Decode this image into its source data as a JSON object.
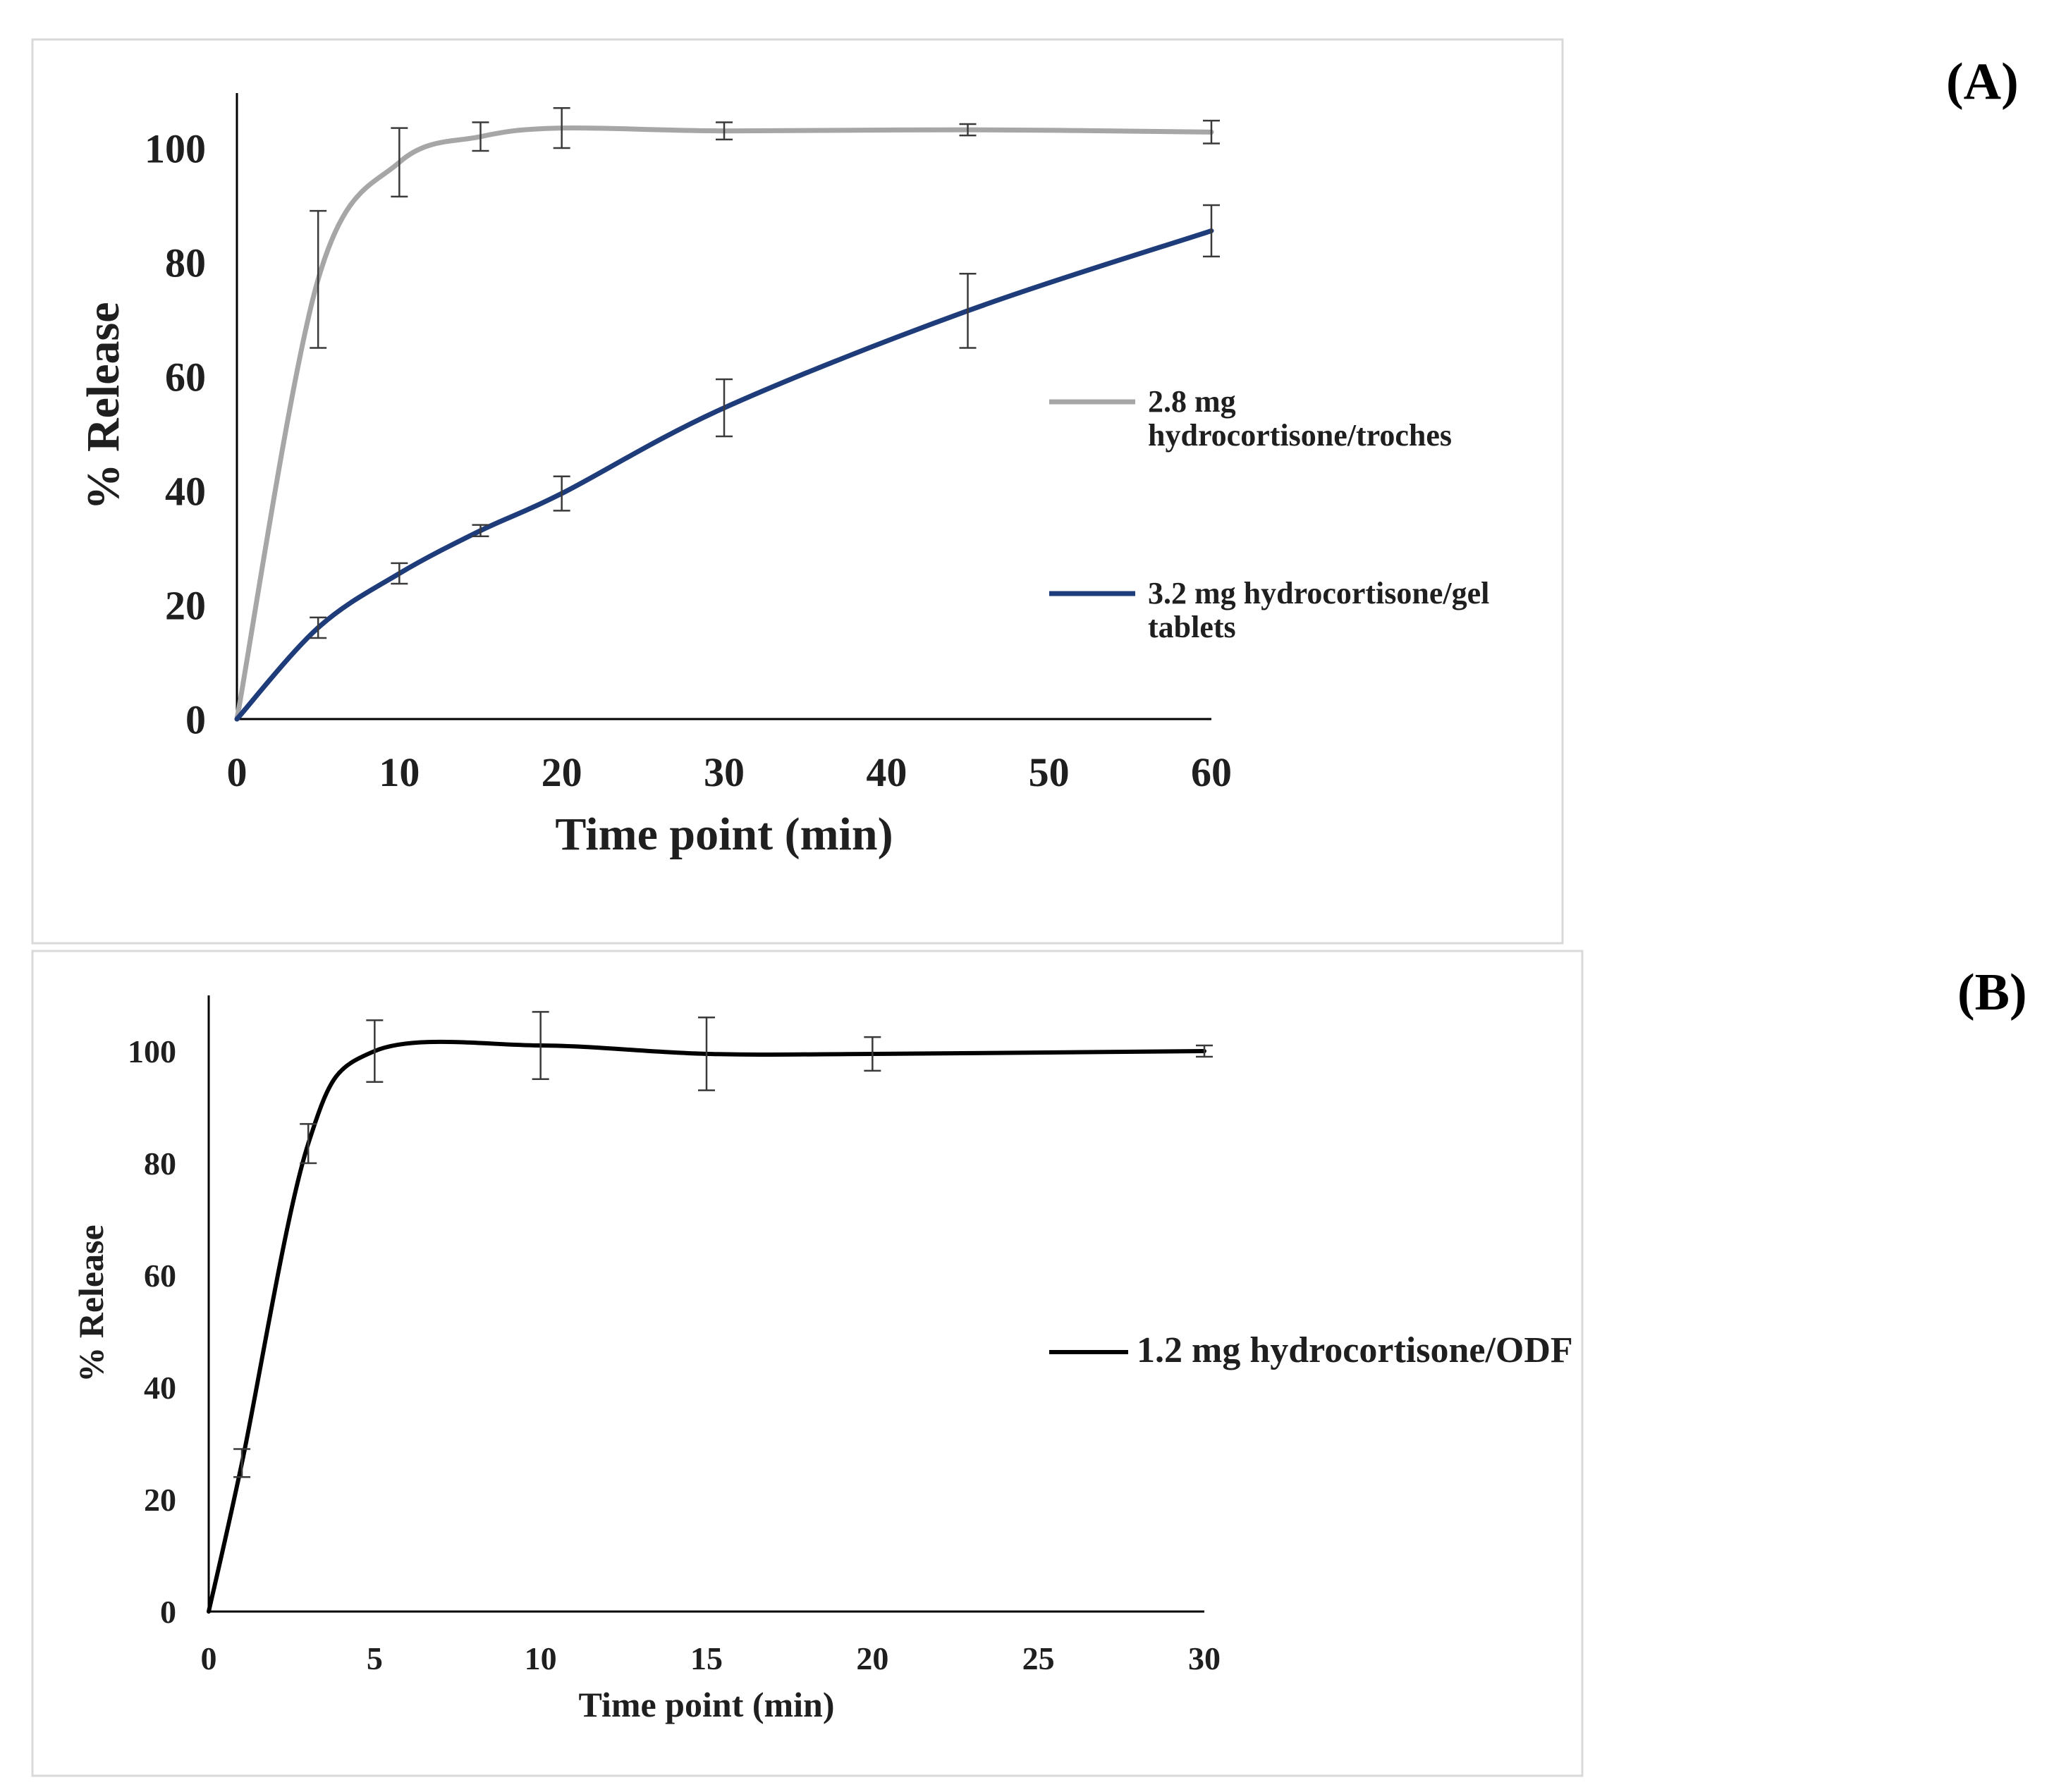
{
  "chart_data": [
    {
      "type": "line",
      "panel_label": "(A)",
      "xlabel": "Time point (min)",
      "ylabel": "% Release",
      "xlim": [
        0,
        60
      ],
      "ylim": [
        0,
        110
      ],
      "xticks": [
        "0",
        "10",
        "20",
        "30",
        "40",
        "50",
        "60"
      ],
      "yticks": [
        "0",
        "20",
        "40",
        "60",
        "80",
        "100"
      ],
      "grid": false,
      "legend_position": "right",
      "series": [
        {
          "name": "2.8 mg hydrocortisone/troches",
          "legend_lines": [
            "2.8 mg",
            "hydrocortisone/troches"
          ],
          "color": "#a6a6a6",
          "x": [
            0,
            5,
            10,
            15,
            20,
            30,
            45,
            60
          ],
          "y": [
            0,
            77,
            97.5,
            102,
            103.5,
            103,
            103.2,
            102.8
          ],
          "err": [
            0,
            12,
            6,
            2.5,
            3.5,
            1.5,
            1,
            2
          ]
        },
        {
          "name": "3.2 mg hydrocortisone/gel tablets",
          "legend_lines": [
            "3.2 mg hydrocortisone/gel",
            "tablets"
          ],
          "color": "#1f3c7a",
          "x": [
            0,
            5,
            10,
            15,
            20,
            30,
            45,
            60
          ],
          "y": [
            0,
            16,
            25.5,
            33,
            39.5,
            54.5,
            71.5,
            85.5
          ],
          "err": [
            0,
            1.8,
            1.8,
            1,
            3,
            5,
            6.5,
            4.5
          ]
        }
      ]
    },
    {
      "type": "line",
      "panel_label": "(B)",
      "xlabel": "Time point (min)",
      "ylabel": "% Release",
      "xlim": [
        0,
        30
      ],
      "ylim": [
        0,
        110
      ],
      "xticks": [
        "0",
        "5",
        "10",
        "15",
        "20",
        "25",
        "30"
      ],
      "yticks": [
        "0",
        "20",
        "40",
        "60",
        "80",
        "100"
      ],
      "grid": false,
      "legend_position": "right",
      "series": [
        {
          "name": "1.2 mg hydrocortisone/ODF",
          "legend_lines": [
            "1.2 mg hydrocortisone/ODF"
          ],
          "color": "#000000",
          "x": [
            0,
            1,
            3,
            5,
            10,
            15,
            20,
            30
          ],
          "y": [
            0,
            26.5,
            83.5,
            100,
            101,
            99.5,
            99.5,
            100
          ],
          "err": [
            0,
            2.5,
            3.5,
            5.5,
            6,
            6.5,
            3,
            1
          ]
        }
      ]
    }
  ]
}
